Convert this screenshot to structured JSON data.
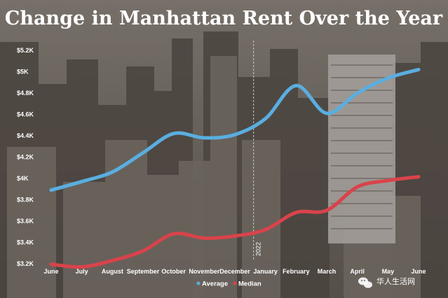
{
  "chart_data": {
    "type": "line",
    "title": "Change in Manhattan Rent Over the Year",
    "xlabel": "",
    "ylabel": "",
    "categories": [
      "June",
      "July",
      "August",
      "September",
      "October",
      "November",
      "December",
      "January",
      "February",
      "March",
      "April",
      "May",
      "June"
    ],
    "yticks": [
      "$5.2K",
      "$5K",
      "$4.8K",
      "$4.6K",
      "$4.4K",
      "$4.2K",
      "$4K",
      "$3.8K",
      "$3.6K",
      "$3.4K",
      "$3.2K"
    ],
    "ylim": [
      3200,
      5200
    ],
    "grid": false,
    "legend": "bottom-center",
    "series": [
      {
        "name": "Average",
        "color": "#5aaee0",
        "values": [
          3890,
          3970,
          4060,
          4240,
          4420,
          4380,
          4410,
          4560,
          4870,
          4610,
          4800,
          4940,
          5020
        ]
      },
      {
        "name": "Median",
        "color": "#d9434b",
        "values": [
          3195,
          3170,
          3230,
          3320,
          3480,
          3440,
          3460,
          3520,
          3680,
          3700,
          3920,
          3980,
          4015
        ]
      }
    ],
    "annotations": [
      {
        "text": "2022",
        "at": "January"
      }
    ]
  },
  "watermark": {
    "text": "华人生活网",
    "icon": "wechat-icon"
  }
}
